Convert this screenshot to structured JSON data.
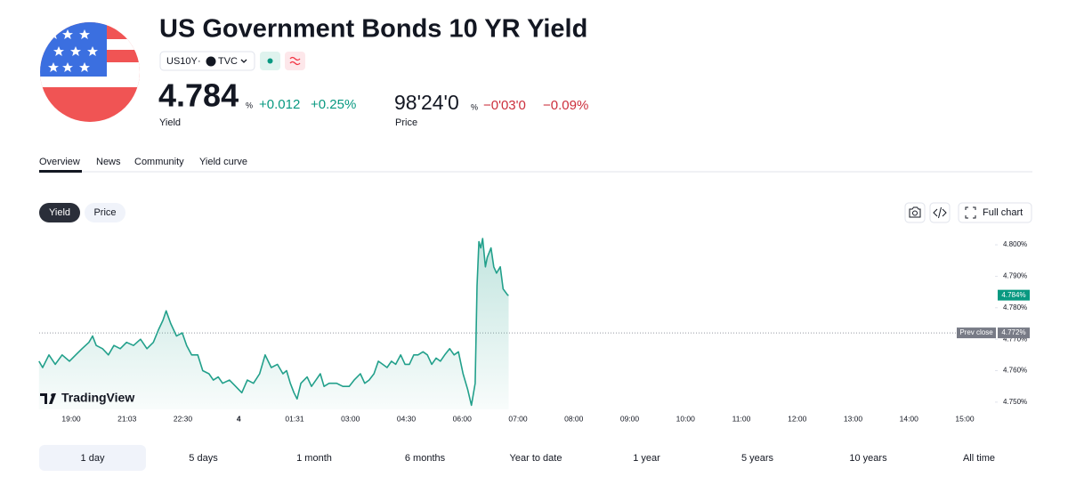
{
  "header": {
    "title": "US Government Bonds 10 YR Yield",
    "symbol": "US10Y",
    "separator": "·",
    "exchange": "TVC"
  },
  "quotes": [
    {
      "value": "4.784",
      "unit": "%",
      "change": "+0.012",
      "change_percent": "+0.25%",
      "label": "Yield"
    },
    {
      "value": "98'24'0",
      "unit": "%",
      "change": "−0'03'0",
      "change_percent": "−0.09%",
      "label": "Price"
    }
  ],
  "tabs": [
    "Overview",
    "News",
    "Community",
    "Yield curve"
  ],
  "toggle": [
    "Yield",
    "Price"
  ],
  "toolbar": {
    "full_chart": "Full chart"
  },
  "watermark": "TradingView",
  "ranges": [
    "1 day",
    "5 days",
    "1 month",
    "6 months",
    "Year to date",
    "1 year",
    "5 years",
    "10 years",
    "All time"
  ],
  "chart_data": {
    "type": "line",
    "color": "#22a08b",
    "x": [
      "17:49",
      "17:57",
      "18:11",
      "18:25",
      "18:40",
      "18:56",
      "19:10",
      "19:24",
      "19:39",
      "19:47",
      "19:55",
      "20:09",
      "20:22",
      "20:34",
      "20:48",
      "21:02",
      "21:13",
      "21:24",
      "21:34",
      "21:44",
      "21:52",
      "21:59",
      "22:04",
      "22:11",
      "22:20",
      "22:29",
      "22:36",
      "22:44",
      "22:54",
      "23:02",
      "23:12",
      "23:19",
      "23:27",
      "23:34",
      "23:45",
      "23:55",
      "00:05",
      "00:14",
      "00:24",
      "00:34",
      "00:43",
      "00:53",
      "01:03",
      "01:12",
      "01:18",
      "01:24",
      "01:30",
      "01:35",
      "01:41",
      "01:51",
      "01:58",
      "02:05",
      "02:12",
      "02:18",
      "02:26",
      "02:38",
      "02:48",
      "02:58",
      "03:06",
      "03:16",
      "03:23",
      "03:30",
      "03:38",
      "03:45",
      "03:52",
      "03:59",
      "04:06",
      "04:13",
      "04:21",
      "04:28",
      "04:35",
      "04:42",
      "04:49",
      "04:57",
      "05:04",
      "05:11",
      "05:18",
      "05:25",
      "05:32",
      "05:40",
      "05:47",
      "05:54",
      "06:01",
      "06:06",
      "06:10",
      "06:14",
      "06:16",
      "06:18",
      "06:20",
      "06:22",
      "06:25",
      "06:27",
      "06:31",
      "06:34",
      "06:37",
      "06:41",
      "06:44",
      "06:49",
      "06:50"
    ],
    "values": [
      4.763,
      4.761,
      4.765,
      4.762,
      4.765,
      4.763,
      4.765,
      4.767,
      4.769,
      4.771,
      4.768,
      4.767,
      4.765,
      4.768,
      4.767,
      4.769,
      4.768,
      4.77,
      4.767,
      4.769,
      4.773,
      4.776,
      4.779,
      4.775,
      4.771,
      4.772,
      4.768,
      4.765,
      4.765,
      4.76,
      4.759,
      4.757,
      4.758,
      4.756,
      4.757,
      4.755,
      4.753,
      4.757,
      4.756,
      4.759,
      4.765,
      4.761,
      4.762,
      4.759,
      4.76,
      4.756,
      4.753,
      4.751,
      4.756,
      4.758,
      4.755,
      4.757,
      4.759,
      4.755,
      4.756,
      4.756,
      4.755,
      4.755,
      4.757,
      4.759,
      4.756,
      4.757,
      4.759,
      4.763,
      4.762,
      4.761,
      4.763,
      4.762,
      4.765,
      4.762,
      4.762,
      4.765,
      4.765,
      4.766,
      4.765,
      4.762,
      4.764,
      4.763,
      4.765,
      4.767,
      4.765,
      4.766,
      4.759,
      4.754,
      4.749,
      4.756,
      4.787,
      4.801,
      4.799,
      4.802,
      4.793,
      4.796,
      4.799,
      4.793,
      4.791,
      4.793,
      4.786,
      4.784,
      4.784
    ],
    "last_label": "4.784%",
    "prev_close": {
      "label": "Prev close",
      "value": 4.772,
      "value_label": "4.772%"
    },
    "ylim": [
      4.7477,
      4.8037
    ],
    "yticks": [
      {
        "value": 4.75,
        "label": "4.750%"
      },
      {
        "value": 4.76,
        "label": "4.760%"
      },
      {
        "value": 4.77,
        "label": "4.770%"
      },
      {
        "value": 4.78,
        "label": "4.780%"
      },
      {
        "value": 4.79,
        "label": "4.790%"
      },
      {
        "value": 4.8,
        "label": "4.800%"
      }
    ],
    "xticks": [
      "19:00",
      "21:03",
      "22:30",
      {
        "value": "00:00",
        "label": "4"
      },
      "01:31",
      "03:00",
      "04:30",
      "06:00",
      "07:00",
      "08:00",
      "09:00",
      "10:00",
      "11:00",
      "12:00",
      "13:00",
      "14:00",
      "15:00"
    ]
  }
}
